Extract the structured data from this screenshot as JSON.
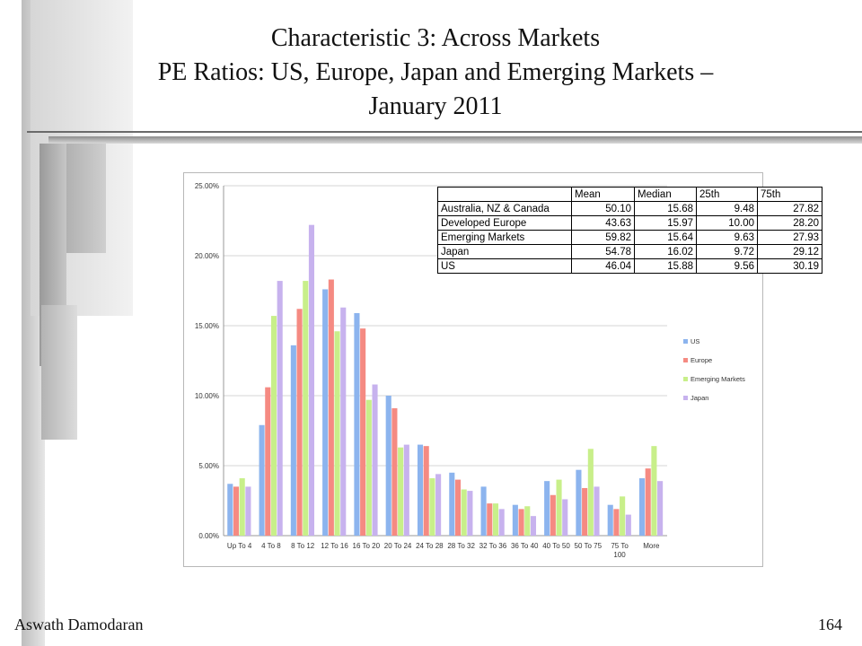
{
  "slide": {
    "title_line1": "Characteristic 3: Across Markets",
    "title_line2": "PE Ratios: US, Europe, Japan and Emerging Markets –",
    "title_line3": "January 2011",
    "footer_author": "Aswath Damodaran",
    "page_number": "164"
  },
  "colors": {
    "US": "#8cb4ee",
    "Europe": "#f58a82",
    "Emerging Markets": "#c8ef8a",
    "Japan": "#c7b2ee"
  },
  "stats_table": {
    "headers": [
      "",
      "Mean",
      "Median",
      "25th",
      "75th"
    ],
    "rows": [
      [
        "Australia, NZ & Canada",
        "50.10",
        "15.68",
        "9.48",
        "27.82"
      ],
      [
        "Developed Europe",
        "43.63",
        "15.97",
        "10.00",
        "28.20"
      ],
      [
        "Emerging Markets",
        "59.82",
        "15.64",
        "9.63",
        "27.93"
      ],
      [
        "Japan",
        "54.78",
        "16.02",
        "9.72",
        "29.12"
      ],
      [
        "US",
        "46.04",
        "15.88",
        "9.56",
        "30.19"
      ]
    ]
  },
  "chart_data": {
    "type": "bar",
    "categories": [
      "Up To 4",
      "4 To 8",
      "8 To 12",
      "12 To 16",
      "16 To 20",
      "20 To 24",
      "24 To 28",
      "28 To 32",
      "32 To 36",
      "36 To 40",
      "40 To 50",
      "50 To 75",
      "75 To 100",
      "More"
    ],
    "series": [
      {
        "name": "US",
        "values": [
          3.7,
          7.9,
          13.6,
          17.6,
          15.9,
          10.0,
          6.5,
          4.5,
          3.5,
          2.2,
          3.9,
          4.7,
          2.2,
          4.1
        ]
      },
      {
        "name": "Europe",
        "values": [
          3.5,
          10.6,
          16.2,
          18.3,
          14.8,
          9.1,
          6.4,
          4.0,
          2.3,
          1.9,
          2.9,
          3.4,
          1.9,
          4.8
        ]
      },
      {
        "name": "Emerging Markets",
        "values": [
          4.1,
          15.7,
          18.2,
          14.6,
          9.7,
          6.3,
          4.1,
          3.3,
          2.3,
          2.1,
          4.0,
          6.2,
          2.8,
          6.4
        ]
      },
      {
        "name": "Japan",
        "values": [
          3.5,
          18.2,
          22.2,
          16.3,
          10.8,
          6.5,
          4.4,
          3.2,
          1.9,
          1.4,
          2.6,
          3.5,
          1.5,
          3.9
        ]
      }
    ],
    "yticks": [
      "0.00%",
      "5.00%",
      "10.00%",
      "15.00%",
      "20.00%",
      "25.00%"
    ],
    "ylim": [
      0,
      25
    ],
    "grid": true,
    "legend": "right",
    "title": "",
    "xlabel": "",
    "ylabel": ""
  }
}
